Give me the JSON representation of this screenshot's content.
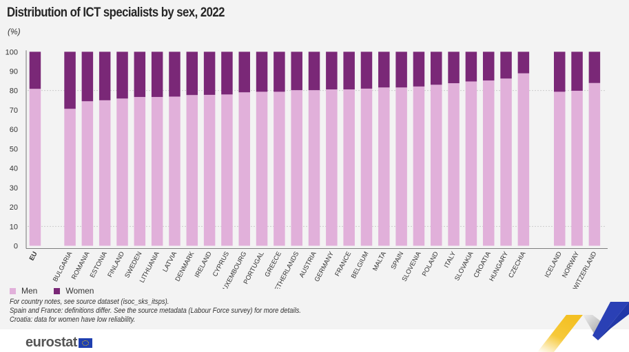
{
  "chart_data": {
    "type": "bar",
    "stacked": true,
    "title": "Distribution of ICT specialists by sex, 2022",
    "unit": "(%)",
    "categories": [
      "EU",
      "Bulgaria",
      "Romania",
      "Estonia",
      "Finland",
      "Sweden",
      "Lithuania",
      "Latvia",
      "Denmark",
      "Ireland",
      "Cyprus",
      "Luxembourg",
      "Portugal",
      "Greece",
      "Netherlands",
      "Austria",
      "Germany",
      "France",
      "Belgium",
      "Malta",
      "Spain",
      "Slovenia",
      "Poland",
      "Italy",
      "Slovakia",
      "Croatia",
      "Hungary",
      "Czechia",
      "Iceland",
      "Norway",
      "Switzerland"
    ],
    "series": [
      {
        "name": "Men",
        "color": "#e1b0da",
        "values": [
          80.9,
          70.6,
          74.5,
          75.0,
          75.9,
          76.7,
          76.7,
          76.9,
          77.7,
          77.8,
          78.0,
          79.1,
          79.4,
          79.4,
          80.2,
          80.2,
          80.6,
          80.6,
          81.0,
          81.6,
          81.6,
          82.1,
          83.0,
          83.8,
          84.7,
          85.2,
          86.2,
          88.9,
          79.4,
          79.9,
          83.9
        ]
      },
      {
        "name": "Women",
        "color": "#7a2877",
        "values": [
          19.1,
          29.4,
          25.5,
          25.0,
          24.1,
          23.3,
          23.3,
          23.1,
          22.3,
          22.2,
          22.0,
          20.9,
          20.6,
          20.6,
          19.8,
          19.8,
          19.4,
          19.4,
          19.0,
          18.4,
          18.4,
          17.9,
          17.0,
          16.2,
          15.3,
          14.8,
          13.8,
          11.1,
          20.6,
          20.1,
          16.1
        ]
      }
    ],
    "ylim": [
      0,
      100
    ],
    "yticks": [
      0,
      10,
      20,
      30,
      40,
      50,
      60,
      70,
      80,
      90,
      100
    ],
    "grid": true,
    "legend": "bottom-left"
  },
  "legend": {
    "men": "Men",
    "women": "Women"
  },
  "notes": [
    "For country notes, see source dataset (isoc_sks_itsps).",
    "Spain and France: definitions differ. See the source metadata (Labour Force survey) for more details.",
    "Croatia: data for women have low reliability."
  ],
  "logo": "eurostat"
}
